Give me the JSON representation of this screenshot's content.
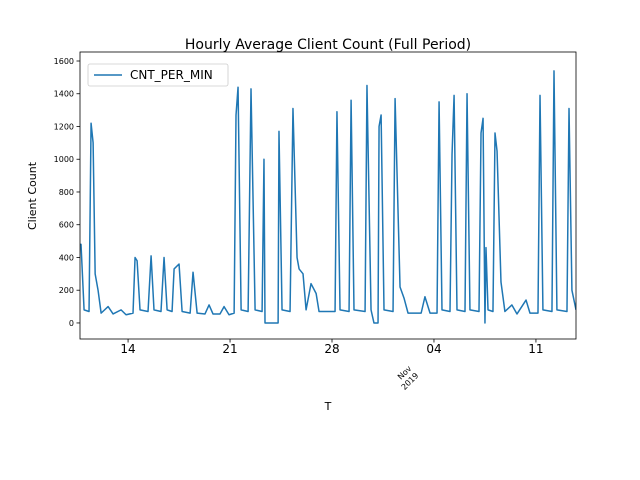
{
  "chart_data": {
    "type": "line",
    "title": "Hourly Average Client Count (Full Period)",
    "x_label": "T",
    "y_label": "Client Count",
    "x_offset_label": [
      "Nov",
      "2019"
    ],
    "xlim": [
      10.7,
      44.75
    ],
    "xticks": [
      14,
      21,
      28,
      {
        "value": 35,
        "label": "04"
      },
      {
        "value": 42,
        "label": "11"
      }
    ],
    "ylim": [
      -98,
      1655
    ],
    "yticks": [
      0,
      200,
      400,
      600,
      800,
      1000,
      1200,
      1400,
      1600
    ],
    "legend": "upper left",
    "x": [
      10.7,
      10.77,
      10.98,
      11.32,
      11.46,
      11.6,
      11.74,
      11.94,
      12.15,
      12.63,
      12.97,
      13.52,
      13.86,
      14.34,
      14.48,
      14.62,
      14.82,
      15.37,
      15.58,
      15.78,
      16.26,
      16.47,
      16.68,
      17.02,
      17.16,
      17.5,
      17.71,
      18.26,
      18.46,
      18.74,
      19.28,
      19.56,
      19.83,
      20.31,
      20.59,
      20.93,
      21.28,
      21.41,
      21.55,
      21.76,
      22.24,
      22.44,
      22.72,
      23.2,
      23.33,
      23.4,
      24.3,
      24.36,
      24.57,
      25.12,
      25.32,
      25.6,
      25.74,
      26.01,
      26.22,
      26.56,
      26.91,
      27.11,
      28.21,
      28.34,
      28.55,
      29.17,
      29.31,
      29.51,
      30.27,
      30.4,
      30.68,
      30.88,
      31.16,
      31.23,
      31.37,
      31.57,
      32.19,
      32.33,
      32.67,
      32.95,
      33.22,
      34.12,
      34.38,
      34.73,
      35.21,
      35.35,
      35.55,
      36.1,
      36.24,
      36.38,
      36.58,
      37.13,
      37.27,
      37.47,
      38.09,
      38.23,
      38.37,
      38.5,
      38.57,
      38.71,
      39.05,
      39.19,
      39.33,
      39.6,
      39.87,
      40.35,
      40.7,
      41.32,
      41.59,
      42.14,
      42.28,
      42.48,
      43.1,
      43.24,
      43.44,
      44.13,
      44.27,
      44.47,
      44.75
    ],
    "series": [
      {
        "name": "CNT_PER_MIN",
        "color": "#1f77b4",
        "values": [
          480,
          480,
          80,
          70,
          1220,
          1100,
          300,
          200,
          60,
          100,
          55,
          80,
          50,
          60,
          400,
          380,
          80,
          70,
          410,
          80,
          70,
          400,
          80,
          70,
          330,
          360,
          70,
          60,
          310,
          60,
          55,
          110,
          55,
          55,
          100,
          50,
          60,
          1270,
          1440,
          80,
          70,
          1430,
          80,
          70,
          1000,
          0,
          0,
          1170,
          80,
          70,
          1310,
          400,
          330,
          300,
          80,
          240,
          180,
          70,
          70,
          1290,
          80,
          70,
          1360,
          80,
          70,
          1450,
          80,
          0,
          0,
          1200,
          1270,
          80,
          70,
          1370,
          220,
          150,
          60,
          60,
          160,
          60,
          60,
          1350,
          80,
          70,
          1030,
          1390,
          80,
          70,
          1400,
          80,
          70,
          1160,
          1250,
          0,
          460,
          80,
          70,
          1160,
          1050,
          250,
          70,
          110,
          55,
          140,
          60,
          60,
          1390,
          80,
          70,
          1540,
          80,
          70,
          1310,
          200,
          80
        ]
      }
    ]
  }
}
